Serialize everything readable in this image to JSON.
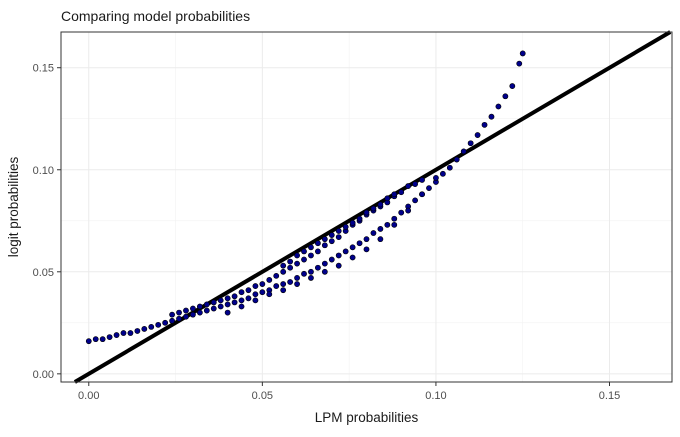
{
  "chart_data": {
    "type": "scatter",
    "title": "Comparing model probabilities",
    "xlabel": "LPM probabilities",
    "ylabel": "logit probabilities",
    "xlim": [
      -0.008,
      0.168
    ],
    "ylim": [
      -0.004,
      0.1675
    ],
    "x_ticks": [
      0.0,
      0.05,
      0.1,
      0.15
    ],
    "x_tick_labels": [
      "0.00",
      "0.05",
      "0.10",
      "0.15"
    ],
    "y_ticks": [
      0.0,
      0.05,
      0.1,
      0.15
    ],
    "y_tick_labels": [
      "0.00",
      "0.05",
      "0.10",
      "0.15"
    ],
    "grid": true,
    "reference_line": {
      "type": "identity",
      "slope": 1,
      "intercept": 0,
      "color": "#000000"
    },
    "point_color": "#00008b",
    "point_outline_color": "#000000",
    "series": [
      {
        "kind": "points",
        "x": [
          0.0,
          0.002,
          0.004,
          0.006,
          0.008,
          0.01,
          0.012,
          0.014,
          0.016,
          0.018,
          0.02,
          0.022,
          0.024,
          0.026,
          0.028,
          0.03,
          0.032,
          0.034,
          0.036,
          0.038,
          0.04,
          0.042,
          0.044,
          0.046,
          0.048,
          0.05,
          0.052,
          0.054,
          0.056,
          0.058,
          0.06,
          0.062,
          0.064,
          0.066,
          0.068,
          0.07,
          0.072,
          0.074,
          0.076,
          0.078,
          0.08,
          0.082,
          0.084,
          0.086,
          0.088,
          0.09,
          0.092,
          0.094,
          0.096,
          0.098,
          0.1,
          0.102,
          0.104,
          0.106,
          0.108,
          0.11,
          0.112,
          0.114,
          0.116,
          0.118,
          0.12,
          0.122,
          0.124,
          0.125,
          0.024,
          0.026,
          0.028,
          0.03,
          0.032,
          0.034,
          0.036,
          0.038,
          0.04,
          0.042,
          0.044,
          0.046,
          0.048,
          0.05,
          0.052,
          0.054,
          0.056,
          0.058,
          0.06,
          0.062,
          0.064,
          0.066,
          0.068,
          0.07,
          0.072,
          0.074,
          0.076,
          0.078,
          0.08,
          0.082,
          0.084,
          0.086,
          0.088,
          0.09,
          0.092,
          0.094,
          0.096,
          0.04,
          0.044,
          0.048,
          0.052,
          0.056,
          0.06,
          0.064,
          0.068,
          0.072,
          0.076,
          0.08,
          0.084,
          0.088,
          0.092,
          0.096,
          0.1,
          0.056,
          0.058,
          0.06,
          0.062,
          0.064,
          0.066,
          0.068,
          0.07,
          0.072,
          0.074,
          0.076,
          0.078,
          0.08,
          0.082,
          0.084,
          0.086,
          0.088
        ],
        "y": [
          0.016,
          0.017,
          0.017,
          0.018,
          0.019,
          0.02,
          0.02,
          0.021,
          0.022,
          0.023,
          0.024,
          0.025,
          0.026,
          0.027,
          0.028,
          0.029,
          0.03,
          0.031,
          0.032,
          0.033,
          0.034,
          0.035,
          0.036,
          0.037,
          0.039,
          0.04,
          0.041,
          0.043,
          0.044,
          0.045,
          0.047,
          0.049,
          0.05,
          0.052,
          0.054,
          0.056,
          0.058,
          0.06,
          0.062,
          0.064,
          0.066,
          0.069,
          0.071,
          0.073,
          0.076,
          0.079,
          0.082,
          0.085,
          0.088,
          0.091,
          0.094,
          0.098,
          0.101,
          0.105,
          0.109,
          0.113,
          0.117,
          0.122,
          0.126,
          0.131,
          0.136,
          0.141,
          0.152,
          0.157,
          0.029,
          0.03,
          0.031,
          0.032,
          0.033,
          0.034,
          0.035,
          0.036,
          0.037,
          0.038,
          0.04,
          0.041,
          0.043,
          0.044,
          0.046,
          0.048,
          0.05,
          0.052,
          0.054,
          0.056,
          0.058,
          0.06,
          0.063,
          0.065,
          0.067,
          0.07,
          0.073,
          0.075,
          0.078,
          0.08,
          0.082,
          0.084,
          0.087,
          0.089,
          0.092,
          0.093,
          0.095,
          0.03,
          0.033,
          0.036,
          0.039,
          0.041,
          0.044,
          0.047,
          0.05,
          0.053,
          0.057,
          0.061,
          0.066,
          0.073,
          0.08,
          0.088,
          0.096,
          0.053,
          0.055,
          0.058,
          0.06,
          0.062,
          0.064,
          0.066,
          0.068,
          0.07,
          0.072,
          0.074,
          0.076,
          0.079,
          0.081,
          0.083,
          0.086,
          0.088
        ]
      }
    ]
  }
}
